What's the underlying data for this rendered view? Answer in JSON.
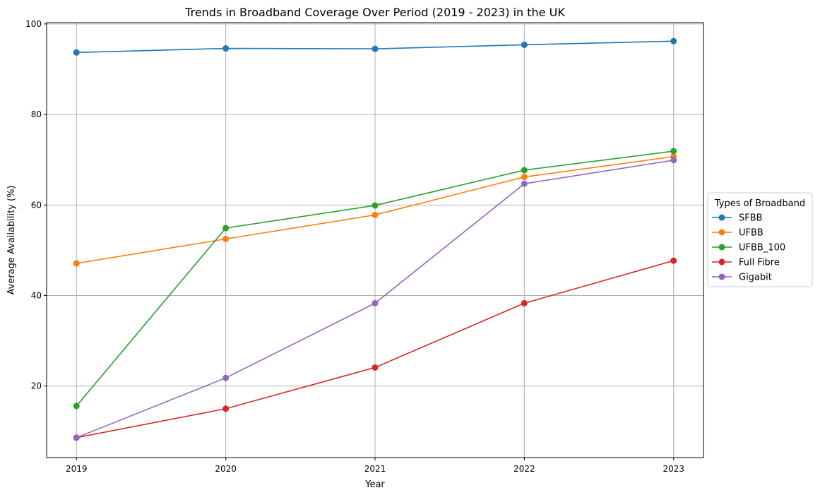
{
  "chart_data": {
    "type": "line",
    "title": "Trends in Broadband Coverage Over Period (2019 - 2023) in the UK",
    "xlabel": "Year",
    "ylabel": "Average Availability (%)",
    "x": [
      2019,
      2020,
      2021,
      2022,
      2023
    ],
    "x_ticks": [
      "2019",
      "2020",
      "2021",
      "2022",
      "2023"
    ],
    "y_ticks": [
      20,
      40,
      60,
      80,
      100
    ],
    "xlim": [
      2018.8,
      2023.2
    ],
    "ylim": [
      4.2,
      100.3
    ],
    "grid": true,
    "legend": {
      "title": "Types of Broadband",
      "placement": "outside-right"
    },
    "series": [
      {
        "name": "SFBB",
        "color": "#1f77b4",
        "values": [
          93.7,
          94.6,
          94.5,
          95.4,
          96.2
        ]
      },
      {
        "name": "UFBB",
        "color": "#ff7f0e",
        "values": [
          47.1,
          52.5,
          57.8,
          66.2,
          70.7
        ]
      },
      {
        "name": "UFBB_100",
        "color": "#2ca02c",
        "values": [
          15.6,
          54.9,
          59.9,
          67.7,
          71.9
        ]
      },
      {
        "name": "Full Fibre",
        "color": "#d62728",
        "values": [
          8.6,
          15.0,
          24.1,
          38.3,
          47.7
        ]
      },
      {
        "name": "Gigabit",
        "color": "#9467bd",
        "values": [
          8.6,
          21.8,
          38.3,
          64.7,
          69.9
        ]
      }
    ]
  }
}
